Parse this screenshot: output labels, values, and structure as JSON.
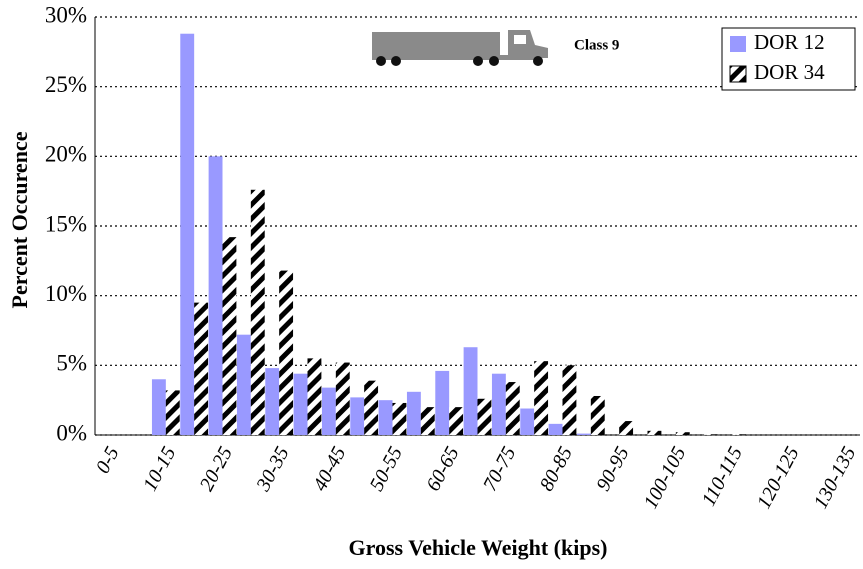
{
  "chart_data": {
    "type": "bar",
    "ylabel": "Percent Occurence",
    "xlabel": "Gross Vehicle Weight (kips)",
    "annotation": "Class 9",
    "categories": [
      "0-5",
      null,
      "10-15",
      null,
      "20-25",
      null,
      "30-35",
      null,
      "40-45",
      null,
      "50-55",
      null,
      "60-65",
      null,
      "70-75",
      null,
      "80-85",
      null,
      "90-95",
      null,
      "100-105",
      null,
      "110-115",
      null,
      "120-125",
      null,
      "130-135"
    ],
    "series": [
      {
        "name": "DOR 12",
        "color": "#9999ff",
        "values": [
          0,
          0,
          4.0,
          28.8,
          20.0,
          7.2,
          4.8,
          4.4,
          3.4,
          2.7,
          2.5,
          3.1,
          4.6,
          6.3,
          4.4,
          1.9,
          0.8,
          0.1,
          0,
          0,
          0,
          0,
          0,
          0,
          0,
          0,
          0
        ]
      },
      {
        "name": "DOR 34",
        "color": "#000000",
        "hatch": true,
        "values": [
          0,
          0,
          3.2,
          9.5,
          14.2,
          17.6,
          11.8,
          5.5,
          5.2,
          3.9,
          2.3,
          2.0,
          2.0,
          2.6,
          3.8,
          5.3,
          5.0,
          2.8,
          1.0,
          0.3,
          0.2,
          0.05,
          0.05,
          0,
          0,
          0,
          0
        ]
      }
    ],
    "ylim": [
      0,
      30
    ],
    "yticks": [
      {
        "value": 0,
        "label": "0%"
      },
      {
        "value": 5,
        "label": "5%"
      },
      {
        "value": 10,
        "label": "10%"
      },
      {
        "value": 15,
        "label": "15%"
      },
      {
        "value": 20,
        "label": "20%"
      },
      {
        "value": 25,
        "label": "25%"
      },
      {
        "value": 30,
        "label": "30%"
      }
    ],
    "grid": true,
    "legend": "top-right"
  }
}
